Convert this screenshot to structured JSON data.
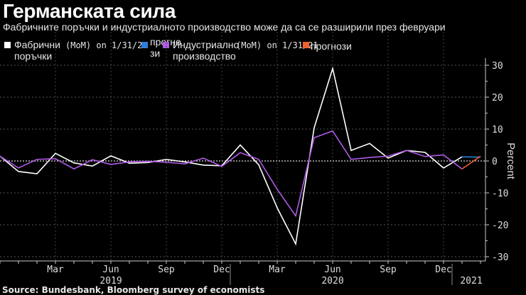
{
  "header": {
    "title": "Германската сила",
    "subtitle": "Фабричните поръчки и индустриалното производство може да са се разширили през февруари"
  },
  "legend": [
    {
      "label_line1": "Фабрични",
      "label_line2": "поръчки",
      "note": "(MoM) on 1/31/21",
      "color": "#ffffff"
    },
    {
      "label_line1": "прогно",
      "label_line2": "зи",
      "color": "#2e7fd8"
    },
    {
      "label_line1": "Индустриално",
      "label_line2": "производство",
      "note": "(MoM) on 1/31/21",
      "color": "#b05be6"
    },
    {
      "label_line1": "прогнози",
      "color": "#f0622d"
    }
  ],
  "footer": {
    "source": "Source: Bundesbank, Bloomberg survey of economists"
  },
  "chart_data": {
    "type": "line",
    "title": "Германската сила",
    "ylabel": "Percent",
    "ylim": [
      -32,
      32
    ],
    "yticks": [
      30,
      20,
      10,
      0,
      -10,
      -20,
      -30
    ],
    "x_start": "Dec 2018",
    "x_months": [
      "Dec 2018",
      "Jan 2019",
      "Feb 2019",
      "Mar 2019",
      "Apr 2019",
      "May 2019",
      "Jun 2019",
      "Jul 2019",
      "Aug 2019",
      "Sep 2019",
      "Oct 2019",
      "Nov 2019",
      "Dec 2019",
      "Jan 2020",
      "Feb 2020",
      "Mar 2020",
      "Apr 2020",
      "May 2020",
      "Jun 2020",
      "Jul 2020",
      "Aug 2020",
      "Sep 2020",
      "Oct 2020",
      "Nov 2020",
      "Dec 2020",
      "Jan 2021",
      "Feb 2021"
    ],
    "xtick_labels": [
      {
        "label": "Mar",
        "index": 3
      },
      {
        "label": "Jun",
        "index": 6
      },
      {
        "label": "Sep",
        "index": 9
      },
      {
        "label": "Dec",
        "index": 12
      },
      {
        "label": "Mar",
        "index": 15
      },
      {
        "label": "Jun",
        "index": 18
      },
      {
        "label": "Sep",
        "index": 21
      },
      {
        "label": "Dec",
        "index": 24
      }
    ],
    "year_labels": [
      {
        "label": "2019",
        "index": 6
      },
      {
        "label": "2020",
        "index": 18
      },
      {
        "label": "2021",
        "index": 25.5
      }
    ],
    "series": [
      {
        "name": "Фабрични поръчки",
        "color": "#ffffff",
        "start_index": 0,
        "values": [
          1.5,
          -3.3,
          -4.0,
          2.4,
          -0.6,
          -1.6,
          1.6,
          -0.7,
          -0.5,
          0.5,
          -0.3,
          -1.3,
          -1.5,
          5.0,
          -1.2,
          -14.7,
          -26.0,
          10.4,
          29.0,
          3.3,
          5.5,
          0.9,
          3.3,
          2.7,
          -2.2,
          1.3
        ]
      },
      {
        "name": "прогнози (поръчки)",
        "color": "#2e7fd8",
        "start_index": 25,
        "values": [
          1.3,
          1.2
        ]
      },
      {
        "name": "Индустриално производство",
        "color": "#b05be6",
        "start_index": 0,
        "values": [
          1.5,
          -2.2,
          0.5,
          0.7,
          -2.5,
          0.4,
          -1.1,
          -0.3,
          -0.1,
          -0.4,
          -0.9,
          0.9,
          -1.7,
          2.6,
          0.5,
          -8.9,
          -17.2,
          7.3,
          9.4,
          0.5,
          1.1,
          1.5,
          3.3,
          1.4,
          1.9,
          -2.5
        ]
      },
      {
        "name": "прогнози (производство)",
        "color": "#f0622d",
        "start_index": 25,
        "values": [
          -2.5,
          1.5
        ]
      }
    ]
  }
}
